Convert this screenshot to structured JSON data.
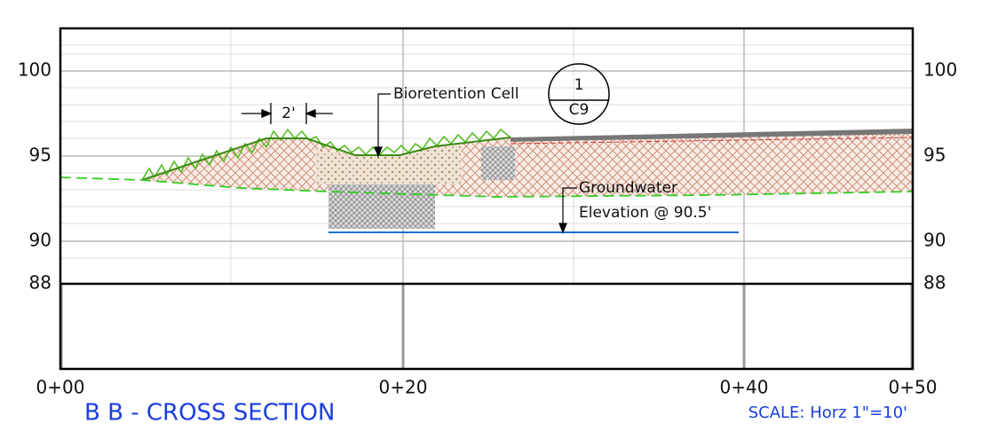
{
  "title": "B B - CROSS SECTION",
  "scale": "SCALE: Horz 1\"=10'",
  "elevations": [
    "100",
    "95",
    "90",
    "88"
  ],
  "stations": [
    "0+00",
    "0+20",
    "0+40",
    "0+50"
  ],
  "annotations": {
    "width": "2'",
    "cell": "Bioretention Cell",
    "detail_number": "1",
    "detail_sheet": "C9",
    "groundwater": "Groundwater",
    "groundwater_elevation": "Elevation @ 90.5'"
  }
}
